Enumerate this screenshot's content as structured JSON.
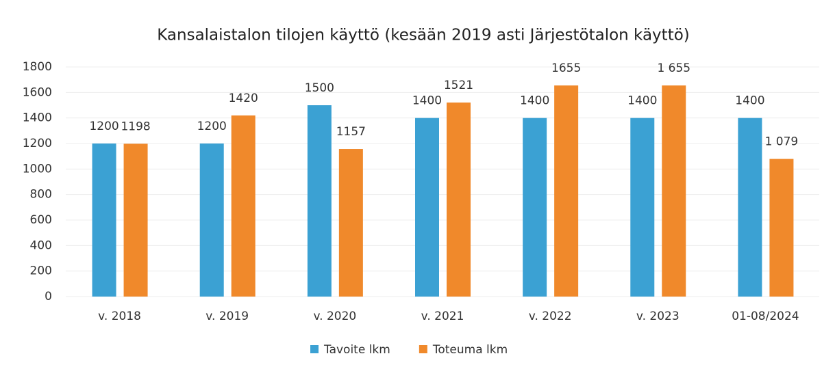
{
  "chart_data": {
    "type": "bar",
    "title": "Kansalaistalon tilojen käyttö (kesään 2019 asti Järjestötalon käyttö)",
    "categories": [
      "v. 2018",
      "v. 2019",
      "v. 2020",
      "v. 2021",
      "v. 2022",
      "v. 2023",
      "01-08/2024"
    ],
    "series": [
      {
        "name": "Tavoite lkm",
        "color": "#3ba1d3",
        "values": [
          1200,
          1200,
          1500,
          1400,
          1400,
          1400,
          1400
        ],
        "value_labels": [
          "1200",
          "1200",
          "1500",
          "1400",
          "1400",
          "1400",
          "1400"
        ]
      },
      {
        "name": "Toteuma lkm",
        "color": "#f0892b",
        "values": [
          1198,
          1420,
          1157,
          1521,
          1655,
          1655,
          1079
        ],
        "value_labels": [
          "1198",
          "1420",
          "1157",
          "1521",
          "1655",
          "1 655",
          "1 079"
        ]
      }
    ],
    "ylim": [
      0,
      1800
    ],
    "yticks": [
      0,
      200,
      400,
      600,
      800,
      1000,
      1200,
      1400,
      1600,
      1800
    ],
    "grid": true,
    "legend": "bottom"
  }
}
